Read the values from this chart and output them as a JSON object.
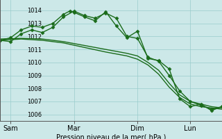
{
  "bg_color": "#cce8e8",
  "grid_color": "#99cccc",
  "line_color": "#1a6b1a",
  "xlabel": "Pression niveau de la mer( hPa )",
  "ylim": [
    1005.5,
    1014.8
  ],
  "yticks": [
    1006,
    1007,
    1008,
    1009,
    1010,
    1011,
    1012,
    1013,
    1014
  ],
  "xtick_labels": [
    "Sam",
    "Mar",
    "Dim",
    "Lun"
  ],
  "xtick_positions": [
    0.5,
    3.5,
    6.5,
    9.0
  ],
  "xlim": [
    0,
    10.5
  ],
  "series": [
    {
      "x": [
        0.0,
        0.5,
        1.0,
        1.5,
        2.0,
        2.5,
        3.0,
        3.3,
        3.5,
        4.0,
        4.5,
        5.0,
        5.5,
        6.0,
        6.5,
        7.0,
        7.5,
        8.0,
        8.5,
        9.0,
        9.5,
        10.0,
        10.5
      ],
      "y": [
        1011.7,
        1011.9,
        1012.5,
        1012.8,
        1012.7,
        1013.0,
        1013.7,
        1013.95,
        1013.85,
        1013.5,
        1013.2,
        1013.9,
        1012.8,
        1011.9,
        1012.4,
        1010.3,
        1010.15,
        1009.5,
        1007.2,
        1006.6,
        1006.8,
        1006.3,
        1006.6
      ],
      "marker": "D",
      "markersize": 2.5,
      "linewidth": 1.0
    },
    {
      "x": [
        0.0,
        0.5,
        1.0,
        1.5,
        2.0,
        2.5,
        3.0,
        3.5,
        4.0,
        4.5,
        5.0,
        5.5,
        6.0,
        6.5,
        7.0,
        7.5,
        8.0,
        8.5,
        9.0,
        9.5,
        10.0,
        10.5
      ],
      "y": [
        1011.7,
        1011.6,
        1012.2,
        1012.5,
        1012.3,
        1012.7,
        1013.5,
        1013.95,
        1013.6,
        1013.4,
        1013.8,
        1013.4,
        1012.0,
        1011.85,
        1010.4,
        1010.1,
        1009.0,
        1007.8,
        1007.0,
        1006.7,
        1006.4,
        1006.6
      ],
      "marker": "D",
      "markersize": 2.5,
      "linewidth": 1.0
    },
    {
      "x": [
        0.0,
        1.0,
        2.0,
        3.0,
        4.0,
        5.0,
        6.0,
        6.5,
        7.0,
        7.5,
        8.0,
        8.5,
        9.0,
        9.5,
        10.0,
        10.5
      ],
      "y": [
        1011.8,
        1011.85,
        1011.8,
        1011.6,
        1011.3,
        1011.0,
        1010.7,
        1010.5,
        1010.0,
        1009.4,
        1008.4,
        1007.5,
        1007.0,
        1006.8,
        1006.6,
        1006.5
      ],
      "marker": null,
      "markersize": 0,
      "linewidth": 1.0
    },
    {
      "x": [
        0.0,
        1.0,
        2.0,
        3.0,
        4.0,
        5.0,
        6.0,
        6.5,
        7.0,
        7.5,
        8.0,
        8.5,
        9.0,
        9.5,
        10.0,
        10.5
      ],
      "y": [
        1011.7,
        1011.8,
        1011.7,
        1011.5,
        1011.15,
        1010.8,
        1010.5,
        1010.25,
        1009.8,
        1009.1,
        1008.1,
        1007.3,
        1006.8,
        1006.6,
        1006.5,
        1006.4
      ],
      "marker": null,
      "markersize": 0,
      "linewidth": 1.0
    }
  ]
}
